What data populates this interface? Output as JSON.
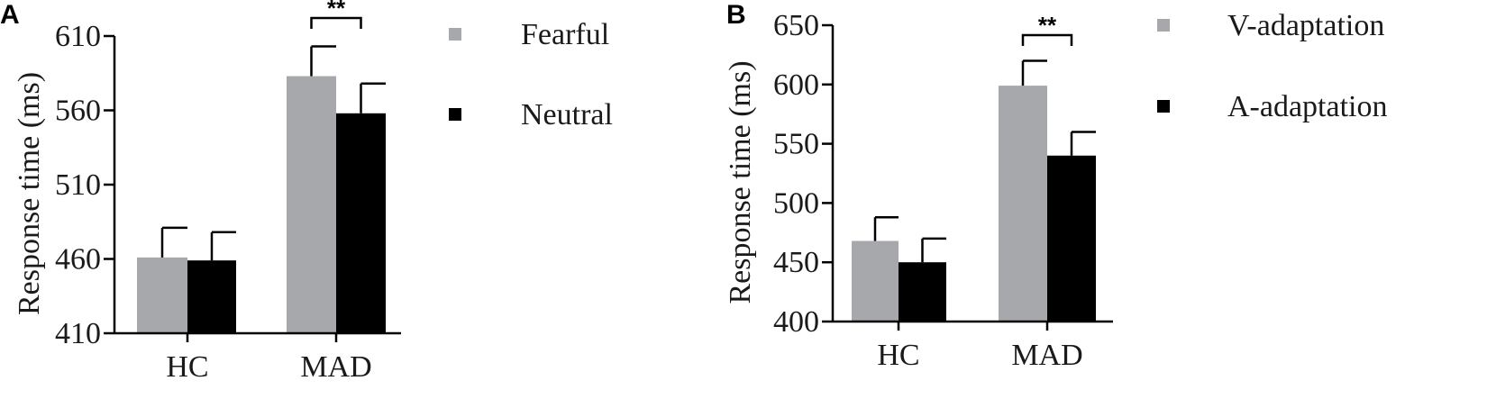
{
  "chart_data": [
    {
      "panel": "A",
      "type": "bar",
      "ylabel": "Response time (ms)",
      "ylim": [
        410,
        610
      ],
      "yticks": [
        "410",
        "460",
        "510",
        "560",
        "610"
      ],
      "categories": [
        "HC",
        "MAD"
      ],
      "series": [
        {
          "name": "Fearful",
          "color": "#a7a8ab",
          "values": [
            461,
            583
          ],
          "errors": [
            20,
            20
          ]
        },
        {
          "name": "Neutral",
          "color": "#000000",
          "values": [
            459,
            558
          ],
          "errors": [
            19,
            20
          ]
        }
      ],
      "significance": [
        {
          "category": "MAD",
          "label": "**"
        }
      ],
      "legend": "right"
    },
    {
      "panel": "B",
      "type": "bar",
      "ylabel": "Response time (ms)",
      "ylim": [
        400,
        650
      ],
      "yticks": [
        "400",
        "450",
        "500",
        "550",
        "600",
        "650"
      ],
      "categories": [
        "HC",
        "MAD"
      ],
      "series": [
        {
          "name": "V-adaptation",
          "color": "#a7a8ab",
          "values": [
            468,
            599
          ],
          "errors": [
            20,
            21
          ]
        },
        {
          "name": "A-adaptation",
          "color": "#000000",
          "values": [
            450,
            540
          ],
          "errors": [
            20,
            20
          ]
        }
      ],
      "significance": [
        {
          "category": "MAD",
          "label": "**"
        }
      ],
      "legend": "right"
    }
  ]
}
